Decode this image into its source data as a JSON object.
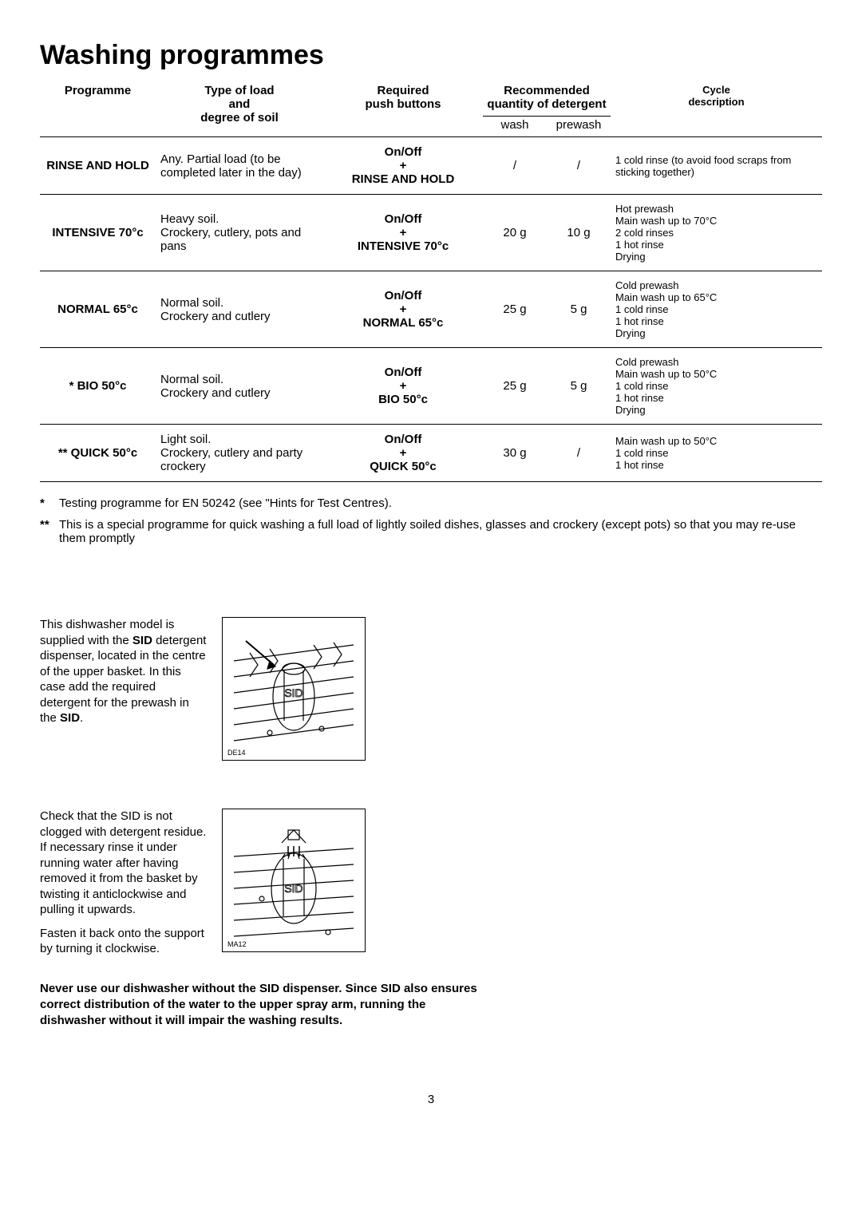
{
  "title": "Washing programmes",
  "headers": {
    "programme": "Programme",
    "load": "Type of load\nand\ndegree of soil",
    "buttons": "Required\npush buttons",
    "detergent": "Recommended\nquantity of detergent",
    "wash": "wash",
    "prewash": "prewash",
    "cycle": "Cycle\ndescription"
  },
  "rows": [
    {
      "programme": "RINSE AND HOLD",
      "load": "Any. Partial load (to be completed later in the day)",
      "buttons": "On/Off\n+\nRINSE AND HOLD",
      "wash": "/",
      "prewash": "/",
      "cycle": "1 cold rinse (to avoid food scraps from sticking together)"
    },
    {
      "programme": "INTENSIVE 70°c",
      "load": "Heavy soil.\nCrockery, cutlery, pots and pans",
      "buttons": "On/Off\n+\nINTENSIVE 70°c",
      "wash": "20 g",
      "prewash": "10 g",
      "cycle": "Hot prewash\nMain wash up to 70°C\n2 cold rinses\n1 hot rinse\nDrying"
    },
    {
      "programme": "NORMAL 65°c",
      "load": "Normal soil.\nCrockery and cutlery",
      "buttons": "On/Off\n+\nNORMAL 65°c",
      "wash": "25 g",
      "prewash": "5 g",
      "cycle": "Cold prewash\nMain wash up to 65°C\n1 cold rinse\n1 hot rinse\nDrying"
    },
    {
      "programme": "* BIO 50°c",
      "load": "Normal soil.\nCrockery and cutlery",
      "buttons": "On/Off\n+\nBIO 50°c",
      "wash": "25 g",
      "prewash": "5 g",
      "cycle": "Cold prewash\nMain wash up to 50°C\n1 cold rinse\n1 hot rinse\nDrying"
    },
    {
      "programme": "** QUICK 50°c",
      "load": "Light soil.\nCrockery, cutlery and party crockery",
      "buttons": "On/Off\n+\nQUICK 50°c",
      "wash": "30 g",
      "prewash": "/",
      "cycle": "Main wash up to 50°C\n1 cold rinse\n1 hot rinse"
    }
  ],
  "footnotes": [
    {
      "mark": "*",
      "text": "Testing programme for EN 50242 (see \"Hints for Test Centres)."
    },
    {
      "mark": "**",
      "text": "This is a special programme for quick washing a full load of lightly soiled dishes, glasses and crockery (except pots) so that you may re-use them promptly"
    }
  ],
  "info1": {
    "text_before": "This dishwasher model is supplied with the ",
    "bold": "SID",
    "text_mid": " detergent dispenser, located in the centre of the upper basket. In this case add the required detergent for the prewash in the ",
    "bold2": "SID",
    "text_after": ".",
    "caption": "DE14",
    "illus_label": "SID"
  },
  "info2": {
    "p1": "Check that the SID is not clogged with detergent residue. If necessary rinse it under running water after having removed it from the basket by twisting it anticlockwise and pulling it upwards.",
    "p2": "Fasten it back onto the support by turning it clockwise.",
    "caption": "MA12",
    "illus_label": "SID"
  },
  "warning": "Never use our dishwasher without the SID dispenser. Since SID also ensures correct distribution of the water to the upper spray arm, running the dishwasher without it will impair the washing results.",
  "page_number": "3",
  "styling": {
    "font_family": "Arial",
    "text_color": "#000000",
    "background_color": "#ffffff",
    "title_fontsize": 34,
    "body_fontsize": 15,
    "cycle_fontsize": 13,
    "border_color": "#000000"
  }
}
